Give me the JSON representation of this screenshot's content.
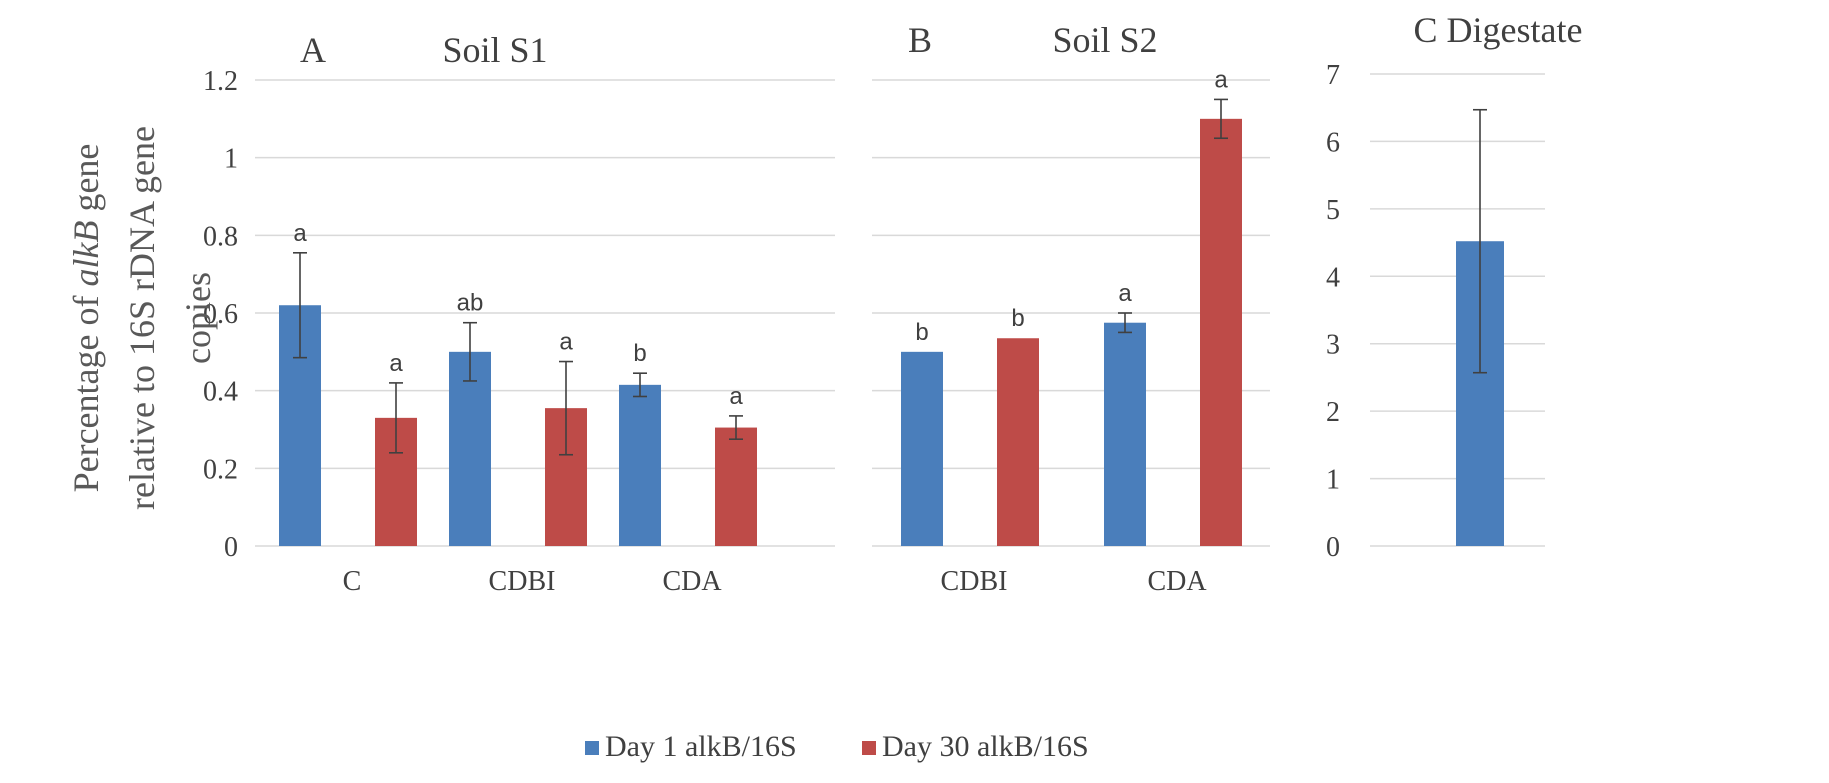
{
  "y_axis_label_lines": [
    {
      "before": "Percentage of ",
      "italic": "alkB",
      "after": " gene"
    },
    {
      "before": "relative to 16S rDNA gene",
      "italic": "",
      "after": ""
    },
    {
      "before": "copies",
      "italic": "",
      "after": ""
    }
  ],
  "legend": [
    {
      "label": "Day 1 alkB/16S",
      "color": "#4a7ebb"
    },
    {
      "label": "Day 30 alkB/16S",
      "color": "#be4b48"
    }
  ],
  "chart_data": [
    {
      "type": "bar",
      "panel_letter": "A",
      "title": "Soil S1",
      "ylim": [
        0,
        1.2
      ],
      "yticks": [
        "0",
        "0.2",
        "0.4",
        "0.6",
        "0.8",
        "1",
        "1.2"
      ],
      "grid": true,
      "categories": [
        "C",
        "CDBI",
        "CDA"
      ],
      "series": [
        {
          "name": "Day 1 alkB/16S",
          "color": "#4a7ebb",
          "values": [
            0.62,
            0.5,
            0.415
          ],
          "errors": [
            0.135,
            0.075,
            0.03
          ],
          "letters": [
            "a",
            "ab",
            "b"
          ]
        },
        {
          "name": "Day 30 alkB/16S",
          "color": "#be4b48",
          "values": [
            0.33,
            0.355,
            0.305
          ],
          "errors": [
            0.09,
            0.12,
            0.03
          ],
          "letters": [
            "a",
            "a",
            "a"
          ]
        }
      ]
    },
    {
      "type": "bar",
      "panel_letter": "B",
      "title": "Soil S2",
      "ylim": [
        0,
        1.2
      ],
      "grid": true,
      "categories": [
        "CDBI",
        "CDA"
      ],
      "series": [
        {
          "name": "Day 1 alkB/16S",
          "color": "#4a7ebb",
          "values": [
            0.5,
            0.575
          ],
          "errors": [
            0.0,
            0.025
          ],
          "letters": [
            "b",
            "a"
          ]
        },
        {
          "name": "Day 30 alkB/16S",
          "color": "#be4b48",
          "values": [
            0.535,
            1.1
          ],
          "errors": [
            0.0,
            0.05
          ],
          "letters": [
            "b",
            "a"
          ]
        }
      ]
    },
    {
      "type": "bar",
      "panel_letter": "C",
      "title": "Digestate",
      "ylim": [
        0,
        7
      ],
      "yticks": [
        "0",
        "1",
        "2",
        "3",
        "4",
        "5",
        "6",
        "7"
      ],
      "grid": true,
      "categories": [
        ""
      ],
      "series": [
        {
          "name": "Day 1 alkB/16S",
          "color": "#4a7ebb",
          "values": [
            4.52
          ],
          "errors": [
            1.95
          ],
          "letters": [
            ""
          ]
        }
      ]
    }
  ]
}
